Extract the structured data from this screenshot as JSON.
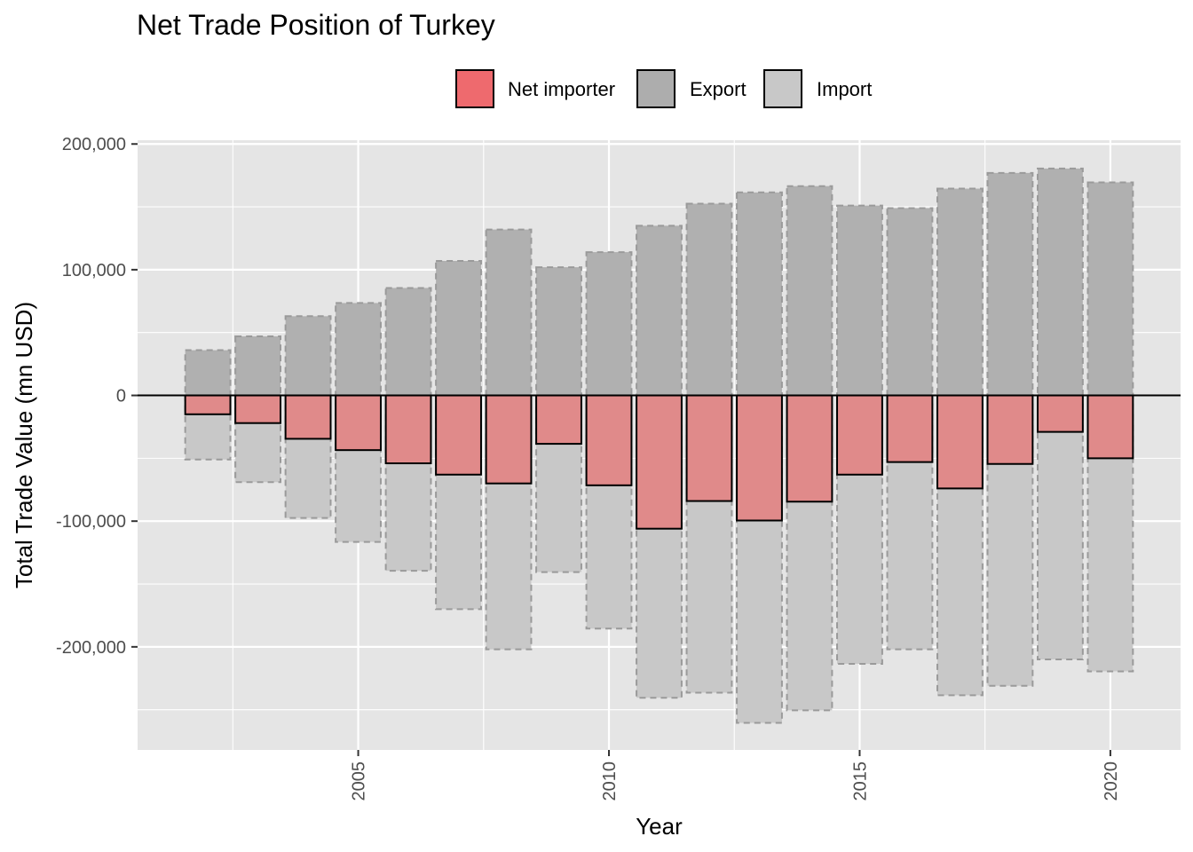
{
  "chart_data": {
    "type": "bar",
    "title": "Net Trade Position of Turkey",
    "xlabel": "Year",
    "ylabel": "Total Trade Value (mn USD)",
    "x": [
      2002,
      2003,
      2004,
      2005,
      2006,
      2007,
      2008,
      2009,
      2010,
      2011,
      2012,
      2013,
      2014,
      2015,
      2016,
      2017,
      2018,
      2019,
      2020
    ],
    "x_ticks": [
      2005,
      2010,
      2015,
      2020
    ],
    "y_ticks": [
      200000,
      100000,
      0,
      -100000,
      -200000
    ],
    "y_tick_labels": [
      "200,000",
      "100,000",
      "0",
      "-100,000",
      "-200,000"
    ],
    "xlim": [
      2000.6,
      2021.4
    ],
    "ylim": [
      -282000,
      203000
    ],
    "series": [
      {
        "name": "Export",
        "color": "#b0b0b0",
        "values": [
          36000,
          47000,
          63000,
          73500,
          85500,
          107000,
          132000,
          102000,
          114000,
          135000,
          152500,
          161500,
          166500,
          151000,
          149000,
          164500,
          177000,
          180500,
          169500
        ]
      },
      {
        "name": "Import",
        "color": "#c8c8c8",
        "values": [
          -51000,
          -69000,
          -97500,
          -116500,
          -139500,
          -170000,
          -202000,
          -140500,
          -185500,
          -240500,
          -236500,
          -260500,
          -250500,
          -213500,
          -202000,
          -238500,
          -231000,
          -210000,
          -219500
        ]
      },
      {
        "name": "Net importer",
        "color": "#e08a8a",
        "values": [
          -15000,
          -22000,
          -34500,
          -43500,
          -54000,
          -63000,
          -70000,
          -38500,
          -71500,
          -106000,
          -84000,
          -99500,
          -84500,
          -63000,
          -53000,
          -74000,
          -54500,
          -29000,
          -50000
        ]
      }
    ],
    "legend": {
      "position": "top",
      "entries": [
        {
          "label": "Net importer",
          "color": "#ee6a6e"
        },
        {
          "label": "Export",
          "color": "#adadad"
        },
        {
          "label": "Import",
          "color": "#c8c8c8"
        }
      ]
    },
    "panel_background": "#e5e5e5",
    "grid": true
  }
}
